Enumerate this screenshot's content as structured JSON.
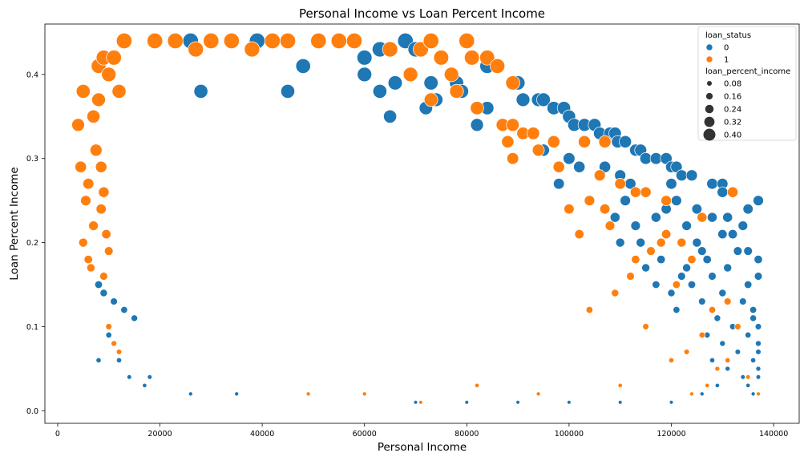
{
  "chart_data": {
    "type": "scatter",
    "title": "Personal Income vs Loan Percent Income",
    "xlabel": "Personal Income",
    "ylabel": "Loan Percent Income",
    "xlim": [
      -2500,
      145000
    ],
    "ylim": [
      -0.015,
      0.46
    ],
    "x_ticks": [
      0,
      20000,
      40000,
      60000,
      80000,
      100000,
      120000,
      140000
    ],
    "x_tick_labels": [
      "0",
      "20000",
      "40000",
      "60000",
      "80000",
      "100000",
      "120000",
      "140000"
    ],
    "y_ticks": [
      0.0,
      0.1,
      0.2,
      0.3,
      0.4
    ],
    "y_tick_labels": [
      "0.0",
      "0.1",
      "0.2",
      "0.3",
      "0.4"
    ],
    "grid": false,
    "hue": {
      "title": "loan_status",
      "categories": [
        {
          "label": "0",
          "color": "#1f77b4"
        },
        {
          "label": "1",
          "color": "#ff7f0e"
        }
      ]
    },
    "size": {
      "title": "loan_percent_income",
      "legend_values": [
        0.08,
        0.16,
        0.24,
        0.32,
        0.4
      ],
      "legend_labels": [
        "0.08",
        "0.16",
        "0.24",
        "0.32",
        "0.40"
      ]
    },
    "legend_location": "top-right",
    "series": [
      {
        "name": "0",
        "color": "#1f77b4",
        "points": [
          {
            "x": 26000,
            "y": 0.44
          },
          {
            "x": 39000,
            "y": 0.44
          },
          {
            "x": 55000,
            "y": 0.44
          },
          {
            "x": 68000,
            "y": 0.44
          },
          {
            "x": 80000,
            "y": 0.44
          },
          {
            "x": 63000,
            "y": 0.43
          },
          {
            "x": 70000,
            "y": 0.43
          },
          {
            "x": 60000,
            "y": 0.42
          },
          {
            "x": 48000,
            "y": 0.41
          },
          {
            "x": 84000,
            "y": 0.41
          },
          {
            "x": 60000,
            "y": 0.4
          },
          {
            "x": 66000,
            "y": 0.39
          },
          {
            "x": 73000,
            "y": 0.39
          },
          {
            "x": 78000,
            "y": 0.39
          },
          {
            "x": 90000,
            "y": 0.39
          },
          {
            "x": 28000,
            "y": 0.38
          },
          {
            "x": 45000,
            "y": 0.38
          },
          {
            "x": 63000,
            "y": 0.38
          },
          {
            "x": 79000,
            "y": 0.38
          },
          {
            "x": 74000,
            "y": 0.37
          },
          {
            "x": 91000,
            "y": 0.37
          },
          {
            "x": 94000,
            "y": 0.37
          },
          {
            "x": 95000,
            "y": 0.37
          },
          {
            "x": 72000,
            "y": 0.36
          },
          {
            "x": 84000,
            "y": 0.36
          },
          {
            "x": 97000,
            "y": 0.36
          },
          {
            "x": 99000,
            "y": 0.36
          },
          {
            "x": 65000,
            "y": 0.35
          },
          {
            "x": 100000,
            "y": 0.35
          },
          {
            "x": 101000,
            "y": 0.34
          },
          {
            "x": 103000,
            "y": 0.34
          },
          {
            "x": 105000,
            "y": 0.34
          },
          {
            "x": 82000,
            "y": 0.34
          },
          {
            "x": 106000,
            "y": 0.33
          },
          {
            "x": 108000,
            "y": 0.33
          },
          {
            "x": 109000,
            "y": 0.33
          },
          {
            "x": 109500,
            "y": 0.32
          },
          {
            "x": 111000,
            "y": 0.32
          },
          {
            "x": 95000,
            "y": 0.31
          },
          {
            "x": 113000,
            "y": 0.31
          },
          {
            "x": 114000,
            "y": 0.31
          },
          {
            "x": 100000,
            "y": 0.3
          },
          {
            "x": 115000,
            "y": 0.3
          },
          {
            "x": 117000,
            "y": 0.3
          },
          {
            "x": 119000,
            "y": 0.3
          },
          {
            "x": 102000,
            "y": 0.29
          },
          {
            "x": 107000,
            "y": 0.29
          },
          {
            "x": 120000,
            "y": 0.29
          },
          {
            "x": 121000,
            "y": 0.29
          },
          {
            "x": 122000,
            "y": 0.28
          },
          {
            "x": 124000,
            "y": 0.28
          },
          {
            "x": 110000,
            "y": 0.28
          },
          {
            "x": 128000,
            "y": 0.27
          },
          {
            "x": 130000,
            "y": 0.27
          },
          {
            "x": 112000,
            "y": 0.27
          },
          {
            "x": 120000,
            "y": 0.27
          },
          {
            "x": 98000,
            "y": 0.27
          },
          {
            "x": 130000,
            "y": 0.26
          },
          {
            "x": 137000,
            "y": 0.25
          },
          {
            "x": 111000,
            "y": 0.25
          },
          {
            "x": 104000,
            "y": 0.25
          },
          {
            "x": 121000,
            "y": 0.25
          },
          {
            "x": 125000,
            "y": 0.24
          },
          {
            "x": 135000,
            "y": 0.24
          },
          {
            "x": 119000,
            "y": 0.24
          },
          {
            "x": 128000,
            "y": 0.23
          },
          {
            "x": 131000,
            "y": 0.23
          },
          {
            "x": 117000,
            "y": 0.23
          },
          {
            "x": 109000,
            "y": 0.23
          },
          {
            "x": 123000,
            "y": 0.22
          },
          {
            "x": 134000,
            "y": 0.22
          },
          {
            "x": 113000,
            "y": 0.22
          },
          {
            "x": 130000,
            "y": 0.21
          },
          {
            "x": 132000,
            "y": 0.21
          },
          {
            "x": 119000,
            "y": 0.21
          },
          {
            "x": 125000,
            "y": 0.2
          },
          {
            "x": 110000,
            "y": 0.2
          },
          {
            "x": 114000,
            "y": 0.2
          },
          {
            "x": 126000,
            "y": 0.19
          },
          {
            "x": 133000,
            "y": 0.19
          },
          {
            "x": 135000,
            "y": 0.19
          },
          {
            "x": 137000,
            "y": 0.18
          },
          {
            "x": 127000,
            "y": 0.18
          },
          {
            "x": 118000,
            "y": 0.18
          },
          {
            "x": 131000,
            "y": 0.17
          },
          {
            "x": 123000,
            "y": 0.17
          },
          {
            "x": 115000,
            "y": 0.17
          },
          {
            "x": 137000,
            "y": 0.16
          },
          {
            "x": 128000,
            "y": 0.16
          },
          {
            "x": 122000,
            "y": 0.16
          },
          {
            "x": 135000,
            "y": 0.15
          },
          {
            "x": 124000,
            "y": 0.15
          },
          {
            "x": 117000,
            "y": 0.15
          },
          {
            "x": 130000,
            "y": 0.14
          },
          {
            "x": 120000,
            "y": 0.14
          },
          {
            "x": 134000,
            "y": 0.13
          },
          {
            "x": 126000,
            "y": 0.13
          },
          {
            "x": 136000,
            "y": 0.12
          },
          {
            "x": 121000,
            "y": 0.12
          },
          {
            "x": 136000,
            "y": 0.11
          },
          {
            "x": 129000,
            "y": 0.11
          },
          {
            "x": 137000,
            "y": 0.1
          },
          {
            "x": 132000,
            "y": 0.1
          },
          {
            "x": 135000,
            "y": 0.09
          },
          {
            "x": 127000,
            "y": 0.09
          },
          {
            "x": 137000,
            "y": 0.08
          },
          {
            "x": 130000,
            "y": 0.08
          },
          {
            "x": 137000,
            "y": 0.07
          },
          {
            "x": 133000,
            "y": 0.07
          },
          {
            "x": 136000,
            "y": 0.06
          },
          {
            "x": 128000,
            "y": 0.06
          },
          {
            "x": 137000,
            "y": 0.05
          },
          {
            "x": 131000,
            "y": 0.05
          },
          {
            "x": 134000,
            "y": 0.04
          },
          {
            "x": 137000,
            "y": 0.04
          },
          {
            "x": 135000,
            "y": 0.03
          },
          {
            "x": 129000,
            "y": 0.03
          },
          {
            "x": 136000,
            "y": 0.02
          },
          {
            "x": 126000,
            "y": 0.02
          },
          {
            "x": 120000,
            "y": 0.01
          },
          {
            "x": 110000,
            "y": 0.01
          },
          {
            "x": 100000,
            "y": 0.01
          },
          {
            "x": 90000,
            "y": 0.01
          },
          {
            "x": 80000,
            "y": 0.01
          },
          {
            "x": 70000,
            "y": 0.01
          },
          {
            "x": 8000,
            "y": 0.06
          },
          {
            "x": 10000,
            "y": 0.09
          },
          {
            "x": 12000,
            "y": 0.06
          },
          {
            "x": 14000,
            "y": 0.04
          },
          {
            "x": 17000,
            "y": 0.03
          },
          {
            "x": 18000,
            "y": 0.04
          },
          {
            "x": 26000,
            "y": 0.02
          },
          {
            "x": 35000,
            "y": 0.02
          },
          {
            "x": 9000,
            "y": 0.14
          },
          {
            "x": 11000,
            "y": 0.13
          },
          {
            "x": 13000,
            "y": 0.12
          },
          {
            "x": 15000,
            "y": 0.11
          },
          {
            "x": 8000,
            "y": 0.15
          }
        ]
      },
      {
        "name": "1",
        "color": "#ff7f0e",
        "points": [
          {
            "x": 4000,
            "y": 0.34
          },
          {
            "x": 5000,
            "y": 0.38
          },
          {
            "x": 4500,
            "y": 0.29
          },
          {
            "x": 5500,
            "y": 0.25
          },
          {
            "x": 6000,
            "y": 0.18
          },
          {
            "x": 6500,
            "y": 0.17
          },
          {
            "x": 5000,
            "y": 0.2
          },
          {
            "x": 7000,
            "y": 0.22
          },
          {
            "x": 6000,
            "y": 0.27
          },
          {
            "x": 7500,
            "y": 0.31
          },
          {
            "x": 7000,
            "y": 0.35
          },
          {
            "x": 8000,
            "y": 0.37
          },
          {
            "x": 8000,
            "y": 0.41
          },
          {
            "x": 9000,
            "y": 0.42
          },
          {
            "x": 10000,
            "y": 0.4
          },
          {
            "x": 11000,
            "y": 0.42
          },
          {
            "x": 12000,
            "y": 0.38
          },
          {
            "x": 13000,
            "y": 0.44
          },
          {
            "x": 8500,
            "y": 0.29
          },
          {
            "x": 9000,
            "y": 0.26
          },
          {
            "x": 8500,
            "y": 0.24
          },
          {
            "x": 9500,
            "y": 0.21
          },
          {
            "x": 10000,
            "y": 0.19
          },
          {
            "x": 9000,
            "y": 0.16
          },
          {
            "x": 10000,
            "y": 0.1
          },
          {
            "x": 11000,
            "y": 0.08
          },
          {
            "x": 12000,
            "y": 0.07
          },
          {
            "x": 19000,
            "y": 0.44
          },
          {
            "x": 23000,
            "y": 0.44
          },
          {
            "x": 27000,
            "y": 0.43
          },
          {
            "x": 30000,
            "y": 0.44
          },
          {
            "x": 34000,
            "y": 0.44
          },
          {
            "x": 38000,
            "y": 0.43
          },
          {
            "x": 42000,
            "y": 0.44
          },
          {
            "x": 45000,
            "y": 0.44
          },
          {
            "x": 51000,
            "y": 0.44
          },
          {
            "x": 55000,
            "y": 0.44
          },
          {
            "x": 58000,
            "y": 0.44
          },
          {
            "x": 65000,
            "y": 0.43
          },
          {
            "x": 71000,
            "y": 0.43
          },
          {
            "x": 73000,
            "y": 0.44
          },
          {
            "x": 75000,
            "y": 0.42
          },
          {
            "x": 80000,
            "y": 0.44
          },
          {
            "x": 81000,
            "y": 0.42
          },
          {
            "x": 84000,
            "y": 0.42
          },
          {
            "x": 86000,
            "y": 0.41
          },
          {
            "x": 69000,
            "y": 0.4
          },
          {
            "x": 77000,
            "y": 0.4
          },
          {
            "x": 89000,
            "y": 0.39
          },
          {
            "x": 78000,
            "y": 0.38
          },
          {
            "x": 73000,
            "y": 0.37
          },
          {
            "x": 82000,
            "y": 0.36
          },
          {
            "x": 87000,
            "y": 0.34
          },
          {
            "x": 89000,
            "y": 0.34
          },
          {
            "x": 91000,
            "y": 0.33
          },
          {
            "x": 93000,
            "y": 0.33
          },
          {
            "x": 88000,
            "y": 0.32
          },
          {
            "x": 97000,
            "y": 0.32
          },
          {
            "x": 103000,
            "y": 0.32
          },
          {
            "x": 107000,
            "y": 0.32
          },
          {
            "x": 89000,
            "y": 0.3
          },
          {
            "x": 94000,
            "y": 0.31
          },
          {
            "x": 98000,
            "y": 0.29
          },
          {
            "x": 106000,
            "y": 0.28
          },
          {
            "x": 110000,
            "y": 0.27
          },
          {
            "x": 113000,
            "y": 0.26
          },
          {
            "x": 115000,
            "y": 0.26
          },
          {
            "x": 132000,
            "y": 0.26
          },
          {
            "x": 104000,
            "y": 0.25
          },
          {
            "x": 119000,
            "y": 0.25
          },
          {
            "x": 107000,
            "y": 0.24
          },
          {
            "x": 100000,
            "y": 0.24
          },
          {
            "x": 118000,
            "y": 0.2
          },
          {
            "x": 122000,
            "y": 0.2
          },
          {
            "x": 116000,
            "y": 0.19
          },
          {
            "x": 113000,
            "y": 0.18
          },
          {
            "x": 124000,
            "y": 0.18
          },
          {
            "x": 119000,
            "y": 0.21
          },
          {
            "x": 126000,
            "y": 0.23
          },
          {
            "x": 102000,
            "y": 0.21
          },
          {
            "x": 108000,
            "y": 0.22
          },
          {
            "x": 112000,
            "y": 0.16
          },
          {
            "x": 121000,
            "y": 0.15
          },
          {
            "x": 109000,
            "y": 0.14
          },
          {
            "x": 131000,
            "y": 0.13
          },
          {
            "x": 128000,
            "y": 0.12
          },
          {
            "x": 104000,
            "y": 0.12
          },
          {
            "x": 115000,
            "y": 0.1
          },
          {
            "x": 133000,
            "y": 0.1
          },
          {
            "x": 126000,
            "y": 0.09
          },
          {
            "x": 123000,
            "y": 0.07
          },
          {
            "x": 120000,
            "y": 0.06
          },
          {
            "x": 131000,
            "y": 0.06
          },
          {
            "x": 129000,
            "y": 0.05
          },
          {
            "x": 135000,
            "y": 0.04
          },
          {
            "x": 127000,
            "y": 0.03
          },
          {
            "x": 137000,
            "y": 0.02
          },
          {
            "x": 124000,
            "y": 0.02
          },
          {
            "x": 60000,
            "y": 0.02
          },
          {
            "x": 49000,
            "y": 0.02
          },
          {
            "x": 71000,
            "y": 0.01
          },
          {
            "x": 94000,
            "y": 0.02
          },
          {
            "x": 82000,
            "y": 0.03
          },
          {
            "x": 110000,
            "y": 0.03
          }
        ]
      }
    ]
  }
}
